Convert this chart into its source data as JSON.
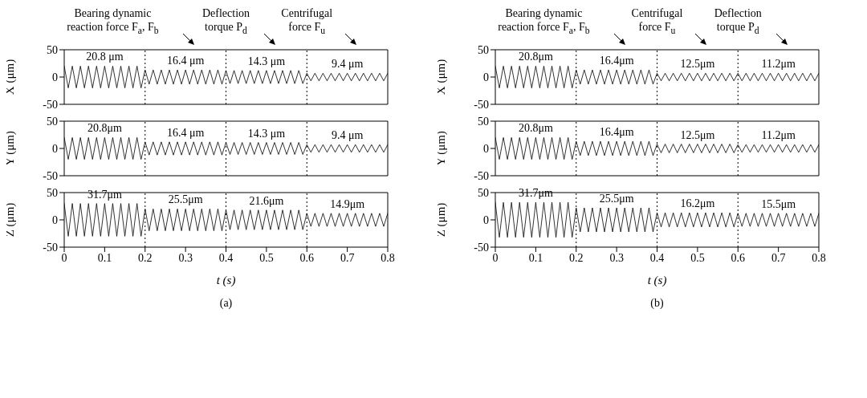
{
  "chart_data": [
    {
      "type": "line",
      "ylabel": "X (μm)",
      "xlim": [
        0,
        0.8
      ],
      "xticks": [
        0,
        0.1,
        0.2,
        0.3,
        0.4,
        0.5,
        0.6,
        0.7,
        0.8
      ],
      "ylim": [
        -50,
        50
      ],
      "yticks": [
        -50,
        0,
        50
      ],
      "tick_labels": "y",
      "ref_lines": [
        {
          "axis": "x",
          "value": 0.2,
          "color": "#000000",
          "line_style": "dotted"
        },
        {
          "axis": "x",
          "value": 0.4,
          "color": "#000000",
          "line_style": "dotted"
        },
        {
          "axis": "x",
          "value": 0.6,
          "color": "#000000",
          "line_style": "dotted"
        }
      ],
      "annotations": [
        "Bearing dynamic reaction force F$_{a}$, F$_{b}$",
        "Deflection torque P$_{d}$",
        "Centrifugal force F$_{u}$",
        {
          "text": "20.8 μm",
          "x": 0.1,
          "y": 20
        },
        {
          "text": "16.4 μm",
          "x": 0.3,
          "y": 13
        },
        {
          "text": "14.3 μm",
          "x": 0.5,
          "y": 12
        },
        {
          "text": "9.4 μm",
          "x": 0.7,
          "y": 7
        }
      ],
      "x": [
        0,
        0.01,
        0.02,
        0.03,
        0.04,
        0.05,
        0.06,
        0.07,
        0.08,
        0.09,
        0.1,
        0.11,
        0.12,
        0.13,
        0.14,
        0.15,
        0.16,
        0.17,
        0.18,
        0.19,
        0.2,
        0.21,
        0.22,
        0.23,
        0.24,
        0.25,
        0.26,
        0.27,
        0.28,
        0.29,
        0.3,
        0.31,
        0.32,
        0.33,
        0.34,
        0.35,
        0.36,
        0.37,
        0.38,
        0.39,
        0.4,
        0.41,
        0.42,
        0.43,
        0.44,
        0.45,
        0.46,
        0.47,
        0.48,
        0.49,
        0.5,
        0.51,
        0.52,
        0.53,
        0.54,
        0.55,
        0.56,
        0.57,
        0.58,
        0.59,
        0.6,
        0.61,
        0.62,
        0.63,
        0.64,
        0.65,
        0.66,
        0.67,
        0.68,
        0.69,
        0.7,
        0.71,
        0.72,
        0.73,
        0.74,
        0.75,
        0.76,
        0.77,
        0.78,
        0.79,
        0.8
      ],
      "series": [
        {
          "color": "#000000",
          "values": [
            20,
            -20,
            20,
            -20,
            20,
            -20,
            20,
            -20,
            20,
            -20,
            20,
            -20,
            20,
            -20,
            20,
            -20,
            20,
            -20,
            20,
            -20,
            13,
            -13,
            13,
            -13,
            13,
            -13,
            13,
            -13,
            13,
            -13,
            13,
            -13,
            13,
            -13,
            13,
            -13,
            13,
            -13,
            13,
            -13,
            12,
            -12,
            12,
            -12,
            12,
            -12,
            12,
            -12,
            12,
            -12,
            12,
            -12,
            12,
            -12,
            12,
            -12,
            12,
            -12,
            12,
            -12,
            7,
            -7,
            7,
            -7,
            7,
            -7,
            7,
            -7,
            7,
            -7,
            7,
            -7,
            7,
            -7,
            7,
            -7,
            7,
            -7,
            7,
            -7,
            7
          ]
        }
      ]
    },
    {
      "type": "line",
      "ylabel": "Y (μm)",
      "xlim": [
        0,
        0.8
      ],
      "xticks": [
        0,
        0.1,
        0.2,
        0.3,
        0.4,
        0.5,
        0.6,
        0.7,
        0.8
      ],
      "ylim": [
        -50,
        50
      ],
      "yticks": [
        -50,
        0,
        50
      ],
      "tick_labels": "y",
      "ref_lines": [
        {
          "axis": "x",
          "value": 0.2,
          "color": "#000000",
          "line_style": "dotted"
        },
        {
          "axis": "x",
          "value": 0.4,
          "color": "#000000",
          "line_style": "dotted"
        },
        {
          "axis": "x",
          "value": 0.6,
          "color": "#000000",
          "line_style": "dotted"
        }
      ],
      "annotations": [
        {
          "text": "20.8μm",
          "x": 0.1,
          "y": 20
        },
        {
          "text": "16.4 μm",
          "x": 0.3,
          "y": 12
        },
        {
          "text": "14.3 μm",
          "x": 0.5,
          "y": 11
        },
        {
          "text": "9.4 μm",
          "x": 0.7,
          "y": 7
        }
      ],
      "x": [
        0,
        0.01,
        0.02,
        0.03,
        0.04,
        0.05,
        0.06,
        0.07,
        0.08,
        0.09,
        0.1,
        0.11,
        0.12,
        0.13,
        0.14,
        0.15,
        0.16,
        0.17,
        0.18,
        0.19,
        0.2,
        0.21,
        0.22,
        0.23,
        0.24,
        0.25,
        0.26,
        0.27,
        0.28,
        0.29,
        0.3,
        0.31,
        0.32,
        0.33,
        0.34,
        0.35,
        0.36,
        0.37,
        0.38,
        0.39,
        0.4,
        0.41,
        0.42,
        0.43,
        0.44,
        0.45,
        0.46,
        0.47,
        0.48,
        0.49,
        0.5,
        0.51,
        0.52,
        0.53,
        0.54,
        0.55,
        0.56,
        0.57,
        0.58,
        0.59,
        0.6,
        0.61,
        0.62,
        0.63,
        0.64,
        0.65,
        0.66,
        0.67,
        0.68,
        0.69,
        0.7,
        0.71,
        0.72,
        0.73,
        0.74,
        0.75,
        0.76,
        0.77,
        0.78,
        0.79,
        0.8
      ],
      "series": [
        {
          "color": "#000000",
          "values": [
            20,
            -20,
            20,
            -20,
            20,
            -20,
            20,
            -20,
            20,
            -20,
            20,
            -20,
            20,
            -20,
            20,
            -20,
            20,
            -20,
            20,
            -20,
            12,
            -12,
            12,
            -12,
            12,
            -12,
            12,
            -12,
            12,
            -12,
            12,
            -12,
            12,
            -12,
            12,
            -12,
            12,
            -12,
            12,
            -12,
            11,
            -11,
            11,
            -11,
            11,
            -11,
            11,
            -11,
            11,
            -11,
            11,
            -11,
            11,
            -11,
            11,
            -11,
            11,
            -11,
            11,
            -11,
            7,
            -7,
            7,
            -7,
            7,
            -7,
            7,
            -7,
            7,
            -7,
            7,
            -7,
            7,
            -7,
            7,
            -7,
            7,
            -7,
            7,
            -7,
            7
          ]
        }
      ]
    },
    {
      "type": "line",
      "ylabel": "Z (μm)",
      "xlabel": "t (s)",
      "xlim": [
        0,
        0.8
      ],
      "xticks": [
        0,
        0.1,
        0.2,
        0.3,
        0.4,
        0.5,
        0.6,
        0.7,
        0.8
      ],
      "ylim": [
        -50,
        50
      ],
      "yticks": [
        -50,
        0,
        50
      ],
      "ref_lines": [
        {
          "axis": "x",
          "value": 0.2,
          "color": "#000000",
          "line_style": "dotted"
        },
        {
          "axis": "x",
          "value": 0.4,
          "color": "#000000",
          "line_style": "dotted"
        },
        {
          "axis": "x",
          "value": 0.6,
          "color": "#000000",
          "line_style": "dotted"
        }
      ],
      "annotations": [
        "(a)",
        {
          "text": "31.7μm",
          "x": 0.1,
          "y": 30
        },
        {
          "text": "25.5μm",
          "x": 0.3,
          "y": 20
        },
        {
          "text": "21.6μm",
          "x": 0.5,
          "y": 18
        },
        {
          "text": "14.9μm",
          "x": 0.7,
          "y": 12
        }
      ],
      "x": [
        0,
        0.01,
        0.02,
        0.03,
        0.04,
        0.05,
        0.06,
        0.07,
        0.08,
        0.09,
        0.1,
        0.11,
        0.12,
        0.13,
        0.14,
        0.15,
        0.16,
        0.17,
        0.18,
        0.19,
        0.2,
        0.21,
        0.22,
        0.23,
        0.24,
        0.25,
        0.26,
        0.27,
        0.28,
        0.29,
        0.3,
        0.31,
        0.32,
        0.33,
        0.34,
        0.35,
        0.36,
        0.37,
        0.38,
        0.39,
        0.4,
        0.41,
        0.42,
        0.43,
        0.44,
        0.45,
        0.46,
        0.47,
        0.48,
        0.49,
        0.5,
        0.51,
        0.52,
        0.53,
        0.54,
        0.55,
        0.56,
        0.57,
        0.58,
        0.59,
        0.6,
        0.61,
        0.62,
        0.63,
        0.64,
        0.65,
        0.66,
        0.67,
        0.68,
        0.69,
        0.7,
        0.71,
        0.72,
        0.73,
        0.74,
        0.75,
        0.76,
        0.77,
        0.78,
        0.79,
        0.8
      ],
      "series": [
        {
          "color": "#000000",
          "values": [
            30,
            -30,
            30,
            -30,
            30,
            -30,
            30,
            -30,
            30,
            -30,
            30,
            -30,
            30,
            -30,
            30,
            -30,
            30,
            -30,
            30,
            -30,
            20,
            -20,
            20,
            -20,
            20,
            -20,
            20,
            -20,
            20,
            -20,
            20,
            -20,
            20,
            -20,
            20,
            -20,
            20,
            -20,
            20,
            -20,
            18,
            -18,
            18,
            -18,
            18,
            -18,
            18,
            -18,
            18,
            -18,
            18,
            -18,
            18,
            -18,
            18,
            -18,
            18,
            -18,
            18,
            -18,
            12,
            -12,
            12,
            -12,
            12,
            -12,
            12,
            -12,
            12,
            -12,
            12,
            -12,
            12,
            -12,
            12,
            -12,
            12,
            -12,
            12,
            -12,
            12
          ]
        }
      ]
    },
    {
      "type": "line",
      "ylabel": "X (μm)",
      "xlim": [
        0,
        0.8
      ],
      "xticks": [
        0,
        0.1,
        0.2,
        0.3,
        0.4,
        0.5,
        0.6,
        0.7,
        0.8
      ],
      "ylim": [
        -50,
        50
      ],
      "yticks": [
        -50,
        0,
        50
      ],
      "tick_labels": "y",
      "ref_lines": [
        {
          "axis": "x",
          "value": 0.2,
          "color": "#000000",
          "line_style": "dotted"
        },
        {
          "axis": "x",
          "value": 0.4,
          "color": "#000000",
          "line_style": "dotted"
        },
        {
          "axis": "x",
          "value": 0.6,
          "color": "#000000",
          "line_style": "dotted"
        }
      ],
      "annotations": [
        "Bearing dynamic reaction force F$_{a}$, F$_{b}$",
        "Centrifugal force F$_{u}$",
        "Deflection torque P$_{d}$",
        {
          "text": "20.8μm",
          "x": 0.1,
          "y": 20
        },
        {
          "text": "16.4μm",
          "x": 0.3,
          "y": 13
        },
        {
          "text": "12.5μm",
          "x": 0.5,
          "y": 7
        },
        {
          "text": "11.2μm",
          "x": 0.7,
          "y": 7
        }
      ],
      "x": [
        0,
        0.01,
        0.02,
        0.03,
        0.04,
        0.05,
        0.06,
        0.07,
        0.08,
        0.09,
        0.1,
        0.11,
        0.12,
        0.13,
        0.14,
        0.15,
        0.16,
        0.17,
        0.18,
        0.19,
        0.2,
        0.21,
        0.22,
        0.23,
        0.24,
        0.25,
        0.26,
        0.27,
        0.28,
        0.29,
        0.3,
        0.31,
        0.32,
        0.33,
        0.34,
        0.35,
        0.36,
        0.37,
        0.38,
        0.39,
        0.4,
        0.41,
        0.42,
        0.43,
        0.44,
        0.45,
        0.46,
        0.47,
        0.48,
        0.49,
        0.5,
        0.51,
        0.52,
        0.53,
        0.54,
        0.55,
        0.56,
        0.57,
        0.58,
        0.59,
        0.6,
        0.61,
        0.62,
        0.63,
        0.64,
        0.65,
        0.66,
        0.67,
        0.68,
        0.69,
        0.7,
        0.71,
        0.72,
        0.73,
        0.74,
        0.75,
        0.76,
        0.77,
        0.78,
        0.79,
        0.8
      ],
      "series": [
        {
          "color": "#000000",
          "values": [
            20,
            -20,
            20,
            -20,
            20,
            -20,
            20,
            -20,
            20,
            -20,
            20,
            -20,
            20,
            -20,
            20,
            -20,
            20,
            -20,
            20,
            -20,
            13,
            -13,
            13,
            -13,
            13,
            -13,
            13,
            -13,
            13,
            -13,
            13,
            -13,
            13,
            -13,
            13,
            -13,
            13,
            -13,
            13,
            -13,
            7,
            -7,
            7,
            -7,
            7,
            -7,
            7,
            -7,
            7,
            -7,
            7,
            -7,
            7,
            -7,
            7,
            -7,
            7,
            -7,
            7,
            -7,
            7,
            -7,
            7,
            -7,
            7,
            -7,
            7,
            -7,
            7,
            -7,
            7,
            -7,
            7,
            -7,
            7,
            -7,
            7,
            -7,
            7,
            -7,
            7
          ]
        }
      ]
    },
    {
      "type": "line",
      "ylabel": "Y (μm)",
      "xlim": [
        0,
        0.8
      ],
      "xticks": [
        0,
        0.1,
        0.2,
        0.3,
        0.4,
        0.5,
        0.6,
        0.7,
        0.8
      ],
      "ylim": [
        -50,
        50
      ],
      "yticks": [
        -50,
        0,
        50
      ],
      "tick_labels": "y",
      "ref_lines": [
        {
          "axis": "x",
          "value": 0.2,
          "color": "#000000",
          "line_style": "dotted"
        },
        {
          "axis": "x",
          "value": 0.4,
          "color": "#000000",
          "line_style": "dotted"
        },
        {
          "axis": "x",
          "value": 0.6,
          "color": "#000000",
          "line_style": "dotted"
        }
      ],
      "annotations": [
        {
          "text": "20.8μm",
          "x": 0.1,
          "y": 20
        },
        {
          "text": "16.4μm",
          "x": 0.3,
          "y": 13
        },
        {
          "text": "12.5μm",
          "x": 0.5,
          "y": 8
        },
        {
          "text": "11.2μm",
          "x": 0.7,
          "y": 7
        }
      ],
      "x": [
        0,
        0.01,
        0.02,
        0.03,
        0.04,
        0.05,
        0.06,
        0.07,
        0.08,
        0.09,
        0.1,
        0.11,
        0.12,
        0.13,
        0.14,
        0.15,
        0.16,
        0.17,
        0.18,
        0.19,
        0.2,
        0.21,
        0.22,
        0.23,
        0.24,
        0.25,
        0.26,
        0.27,
        0.28,
        0.29,
        0.3,
        0.31,
        0.32,
        0.33,
        0.34,
        0.35,
        0.36,
        0.37,
        0.38,
        0.39,
        0.4,
        0.41,
        0.42,
        0.43,
        0.44,
        0.45,
        0.46,
        0.47,
        0.48,
        0.49,
        0.5,
        0.51,
        0.52,
        0.53,
        0.54,
        0.55,
        0.56,
        0.57,
        0.58,
        0.59,
        0.6,
        0.61,
        0.62,
        0.63,
        0.64,
        0.65,
        0.66,
        0.67,
        0.68,
        0.69,
        0.7,
        0.71,
        0.72,
        0.73,
        0.74,
        0.75,
        0.76,
        0.77,
        0.78,
        0.79,
        0.8
      ],
      "series": [
        {
          "color": "#000000",
          "values": [
            20,
            -20,
            20,
            -20,
            20,
            -20,
            20,
            -20,
            20,
            -20,
            20,
            -20,
            20,
            -20,
            20,
            -20,
            20,
            -20,
            20,
            -20,
            13,
            -13,
            13,
            -13,
            13,
            -13,
            13,
            -13,
            13,
            -13,
            13,
            -13,
            13,
            -13,
            13,
            -13,
            13,
            -13,
            13,
            -13,
            8,
            -8,
            8,
            -8,
            8,
            -8,
            8,
            -8,
            8,
            -8,
            8,
            -8,
            8,
            -8,
            8,
            -8,
            8,
            -8,
            8,
            -8,
            7,
            -7,
            7,
            -7,
            7,
            -7,
            7,
            -7,
            7,
            -7,
            7,
            -7,
            7,
            -7,
            7,
            -7,
            7,
            -7,
            7,
            -7,
            7
          ]
        }
      ]
    },
    {
      "type": "line",
      "ylabel": "Z (μm)",
      "xlabel": "t (s)",
      "xlim": [
        0,
        0.8
      ],
      "xticks": [
        0,
        0.1,
        0.2,
        0.3,
        0.4,
        0.5,
        0.6,
        0.7,
        0.8
      ],
      "ylim": [
        -50,
        50
      ],
      "yticks": [
        -50,
        0,
        50
      ],
      "ref_lines": [
        {
          "axis": "x",
          "value": 0.2,
          "color": "#000000",
          "line_style": "dotted"
        },
        {
          "axis": "x",
          "value": 0.4,
          "color": "#000000",
          "line_style": "dotted"
        },
        {
          "axis": "x",
          "value": 0.6,
          "color": "#000000",
          "line_style": "dotted"
        }
      ],
      "annotations": [
        "(b)",
        {
          "text": "31.7μm",
          "x": 0.1,
          "y": 32
        },
        {
          "text": "25.5μm",
          "x": 0.3,
          "y": 22
        },
        {
          "text": "16.2μm",
          "x": 0.5,
          "y": 13
        },
        {
          "text": "15.5μm",
          "x": 0.7,
          "y": 12
        }
      ],
      "x": [
        0,
        0.01,
        0.02,
        0.03,
        0.04,
        0.05,
        0.06,
        0.07,
        0.08,
        0.09,
        0.1,
        0.11,
        0.12,
        0.13,
        0.14,
        0.15,
        0.16,
        0.17,
        0.18,
        0.19,
        0.2,
        0.21,
        0.22,
        0.23,
        0.24,
        0.25,
        0.26,
        0.27,
        0.28,
        0.29,
        0.3,
        0.31,
        0.32,
        0.33,
        0.34,
        0.35,
        0.36,
        0.37,
        0.38,
        0.39,
        0.4,
        0.41,
        0.42,
        0.43,
        0.44,
        0.45,
        0.46,
        0.47,
        0.48,
        0.49,
        0.5,
        0.51,
        0.52,
        0.53,
        0.54,
        0.55,
        0.56,
        0.57,
        0.58,
        0.59,
        0.6,
        0.61,
        0.62,
        0.63,
        0.64,
        0.65,
        0.66,
        0.67,
        0.68,
        0.69,
        0.7,
        0.71,
        0.72,
        0.73,
        0.74,
        0.75,
        0.76,
        0.77,
        0.78,
        0.79,
        0.8
      ],
      "series": [
        {
          "color": "#000000",
          "values": [
            32,
            -32,
            32,
            -32,
            32,
            -32,
            32,
            -32,
            32,
            -32,
            32,
            -32,
            32,
            -32,
            32,
            -32,
            32,
            -32,
            32,
            -32,
            22,
            -22,
            22,
            -22,
            22,
            -22,
            22,
            -22,
            22,
            -22,
            22,
            -22,
            22,
            -22,
            22,
            -22,
            22,
            -22,
            22,
            -22,
            13,
            -13,
            13,
            -13,
            13,
            -13,
            13,
            -13,
            13,
            -13,
            13,
            -13,
            13,
            -13,
            13,
            -13,
            13,
            -13,
            13,
            -13,
            12,
            -12,
            12,
            -12,
            12,
            -12,
            12,
            -12,
            12,
            -12,
            12,
            -12,
            12,
            -12,
            12,
            -12,
            12,
            -12,
            12,
            -12,
            12
          ]
        }
      ]
    }
  ]
}
